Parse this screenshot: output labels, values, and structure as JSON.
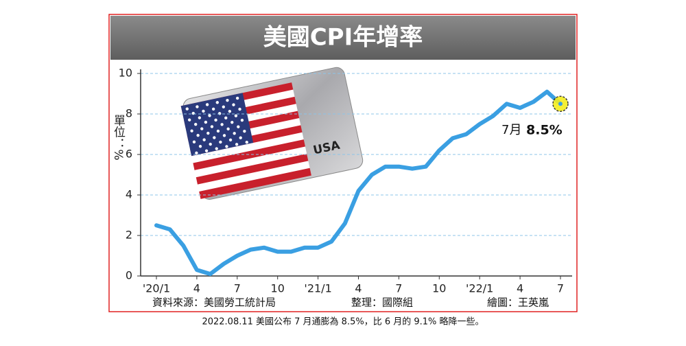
{
  "chart_data": {
    "type": "line",
    "title": "美國CPI年增率",
    "y_label": "單位：%",
    "categories": [
      "'20/1",
      null,
      null,
      "4",
      null,
      null,
      "7",
      null,
      null,
      "10",
      null,
      null,
      "'21/1",
      null,
      null,
      "4",
      null,
      null,
      "7",
      null,
      null,
      "10",
      null,
      null,
      "'22/1",
      null,
      null,
      "4",
      null,
      null,
      "7"
    ],
    "series": [
      {
        "color": "#3a9fe2",
        "values": [
          2.5,
          2.3,
          1.5,
          0.3,
          0.1,
          0.6,
          1.0,
          1.3,
          1.4,
          1.2,
          1.2,
          1.4,
          1.4,
          1.7,
          2.6,
          4.2,
          5.0,
          5.4,
          5.4,
          5.3,
          5.4,
          6.2,
          6.8,
          7.0,
          7.5,
          7.9,
          8.5,
          8.3,
          8.6,
          9.1,
          8.5
        ]
      }
    ],
    "annotation": {
      "prefix": "7月",
      "label": "8.5%"
    },
    "ylim": [
      0,
      10
    ],
    "yticks": [
      0,
      2,
      4,
      6,
      8,
      10
    ],
    "grid": true
  },
  "illustration": {
    "label": "USA"
  },
  "footer": {
    "source": "資料來源：美國勞工統計局",
    "editor": "整理：國際組",
    "graphics": "繪圖：王英嵐"
  },
  "caption": "2022.08.11 美國公布 7 月通膨為 8.5%，比 6 月的 9.1% 略降一些。"
}
